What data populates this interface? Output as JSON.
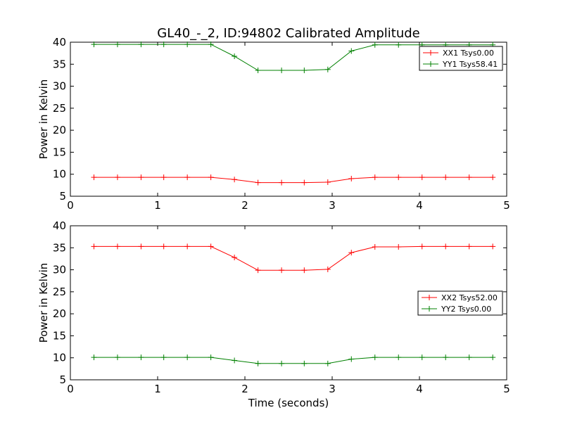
{
  "chart_data": [
    {
      "type": "line",
      "title": "GL40_-_2, ID:94802 Calibrated Amplitude",
      "xlabel": "",
      "ylabel": "Power in Kelvin",
      "xlim": [
        0,
        5
      ],
      "ylim": [
        5,
        40
      ],
      "xticks": [
        "0",
        "1",
        "2",
        "3",
        "4",
        "5"
      ],
      "yticks": [
        "5",
        "10",
        "15",
        "20",
        "25",
        "30",
        "35",
        "40"
      ],
      "grid": false,
      "legend_position": "top-right",
      "x": [
        0.27,
        0.54,
        0.81,
        1.07,
        1.34,
        1.61,
        1.88,
        2.15,
        2.42,
        2.68,
        2.95,
        3.22,
        3.49,
        3.76,
        4.03,
        4.3,
        4.57,
        4.84
      ],
      "series": [
        {
          "name": "XX1 Tsys0.00",
          "color": "#ff0000",
          "values": [
            9.3,
            9.3,
            9.3,
            9.3,
            9.3,
            9.3,
            8.8,
            8.1,
            8.1,
            8.1,
            8.2,
            9.0,
            9.3,
            9.3,
            9.3,
            9.3,
            9.3,
            9.3
          ]
        },
        {
          "name": "YY1 Tsys58.41",
          "color": "#008000",
          "values": [
            39.5,
            39.5,
            39.5,
            39.5,
            39.5,
            39.5,
            36.8,
            33.6,
            33.6,
            33.6,
            33.8,
            38.0,
            39.4,
            39.4,
            39.4,
            39.4,
            39.4,
            39.4
          ]
        }
      ]
    },
    {
      "type": "line",
      "title": "",
      "xlabel": "Time (seconds)",
      "ylabel": "Power in Kelvin",
      "xlim": [
        0,
        5
      ],
      "ylim": [
        5,
        40
      ],
      "xticks": [
        "0",
        "1",
        "2",
        "3",
        "4",
        "5"
      ],
      "yticks": [
        "5",
        "10",
        "15",
        "20",
        "25",
        "30",
        "35",
        "40"
      ],
      "grid": false,
      "legend_position": "center-right",
      "x": [
        0.27,
        0.54,
        0.81,
        1.07,
        1.34,
        1.61,
        1.88,
        2.15,
        2.42,
        2.68,
        2.95,
        3.22,
        3.49,
        3.76,
        4.03,
        4.3,
        4.57,
        4.84
      ],
      "series": [
        {
          "name": "XX2 Tsys52.00",
          "color": "#ff0000",
          "values": [
            35.3,
            35.3,
            35.3,
            35.3,
            35.3,
            35.3,
            32.8,
            29.9,
            29.9,
            29.9,
            30.1,
            33.9,
            35.2,
            35.2,
            35.3,
            35.3,
            35.3,
            35.3
          ]
        },
        {
          "name": "YY2 Tsys0.00",
          "color": "#008000",
          "values": [
            10.1,
            10.1,
            10.1,
            10.1,
            10.1,
            10.1,
            9.4,
            8.7,
            8.7,
            8.7,
            8.7,
            9.7,
            10.1,
            10.1,
            10.1,
            10.1,
            10.1,
            10.1
          ]
        }
      ]
    }
  ]
}
